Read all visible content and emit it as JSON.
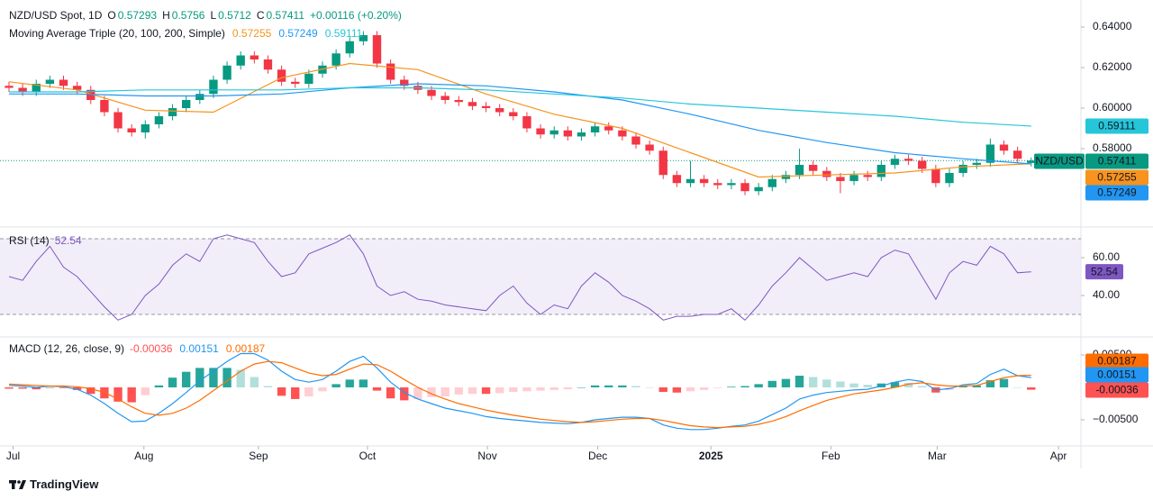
{
  "footer": "TradingView",
  "chart_data": [
    {
      "type": "candlestick",
      "title": "NZD/USD Spot, 1D",
      "ohlc_labels": [
        "O",
        "H",
        "L",
        "C"
      ],
      "change": "+0.00116 (+0.20%)",
      "indicator": "Moving Average Triple (20, 100, 200, Simple)",
      "symbol_tag": "NZD/USD",
      "up_color": "#089981",
      "down_color": "#f23645",
      "xlim": [
        -0.66,
        78.65
      ],
      "ylim": [
        0.5422,
        0.6498
      ],
      "yticks": [
        {
          "value": 0.64,
          "label": "0.64000"
        },
        {
          "value": 0.62,
          "label": "0.62000"
        },
        {
          "value": 0.6,
          "label": "0.60000"
        },
        {
          "value": 0.58,
          "label": "0.58000"
        }
      ],
      "open": [
        0.611,
        0.61,
        0.608,
        0.612,
        0.614,
        0.611,
        0.609,
        0.604,
        0.598,
        0.59,
        0.588,
        0.592,
        0.596,
        0.6,
        0.604,
        0.607,
        0.614,
        0.621,
        0.626,
        0.624,
        0.619,
        0.613,
        0.612,
        0.617,
        0.621,
        0.627,
        0.633,
        0.636,
        0.622,
        0.614,
        0.611,
        0.609,
        0.606,
        0.604,
        0.603,
        0.601,
        0.6,
        0.598,
        0.596,
        0.59,
        0.587,
        0.589,
        0.586,
        0.588,
        0.591,
        0.589,
        0.586,
        0.582,
        0.579,
        0.567,
        0.563,
        0.565,
        0.563,
        0.562,
        0.563,
        0.559,
        0.561,
        0.565,
        0.567,
        0.572,
        0.569,
        0.566,
        0.564,
        0.567,
        0.566,
        0.572,
        0.575,
        0.574,
        0.57,
        0.563,
        0.568,
        0.572,
        0.573,
        0.582,
        0.579,
        0.57293
      ],
      "high": [
        0.613,
        0.612,
        0.614,
        0.616,
        0.616,
        0.613,
        0.611,
        0.606,
        0.6,
        0.592,
        0.594,
        0.598,
        0.602,
        0.606,
        0.609,
        0.616,
        0.623,
        0.628,
        0.628,
        0.626,
        0.621,
        0.615,
        0.619,
        0.623,
        0.629,
        0.635,
        0.638,
        0.638,
        0.624,
        0.616,
        0.613,
        0.611,
        0.608,
        0.606,
        0.605,
        0.603,
        0.602,
        0.6,
        0.598,
        0.592,
        0.591,
        0.591,
        0.59,
        0.593,
        0.593,
        0.591,
        0.588,
        0.584,
        0.581,
        0.569,
        0.574,
        0.567,
        0.565,
        0.565,
        0.565,
        0.563,
        0.567,
        0.569,
        0.58,
        0.574,
        0.571,
        0.568,
        0.569,
        0.569,
        0.574,
        0.577,
        0.577,
        0.576,
        0.572,
        0.57,
        0.574,
        0.575,
        0.585,
        0.584,
        0.581,
        0.5756
      ],
      "low": [
        0.608,
        0.606,
        0.606,
        0.61,
        0.609,
        0.607,
        0.602,
        0.596,
        0.588,
        0.586,
        0.585,
        0.59,
        0.594,
        0.598,
        0.602,
        0.605,
        0.612,
        0.619,
        0.622,
        0.617,
        0.611,
        0.61,
        0.61,
        0.615,
        0.619,
        0.625,
        0.631,
        0.62,
        0.612,
        0.609,
        0.607,
        0.604,
        0.602,
        0.601,
        0.599,
        0.598,
        0.596,
        0.594,
        0.588,
        0.585,
        0.585,
        0.584,
        0.584,
        0.586,
        0.587,
        0.584,
        0.58,
        0.577,
        0.565,
        0.561,
        0.561,
        0.561,
        0.56,
        0.56,
        0.557,
        0.557,
        0.559,
        0.563,
        0.565,
        0.567,
        0.564,
        0.558,
        0.562,
        0.564,
        0.564,
        0.57,
        0.572,
        0.568,
        0.561,
        0.561,
        0.566,
        0.57,
        0.571,
        0.577,
        0.573,
        0.5712
      ],
      "close": [
        0.61,
        0.608,
        0.612,
        0.614,
        0.611,
        0.609,
        0.604,
        0.598,
        0.59,
        0.588,
        0.592,
        0.596,
        0.6,
        0.604,
        0.607,
        0.614,
        0.621,
        0.626,
        0.624,
        0.619,
        0.613,
        0.612,
        0.617,
        0.621,
        0.627,
        0.633,
        0.636,
        0.622,
        0.614,
        0.611,
        0.609,
        0.606,
        0.604,
        0.603,
        0.601,
        0.6,
        0.598,
        0.596,
        0.59,
        0.587,
        0.589,
        0.586,
        0.588,
        0.591,
        0.589,
        0.586,
        0.582,
        0.579,
        0.567,
        0.563,
        0.565,
        0.563,
        0.562,
        0.563,
        0.559,
        0.561,
        0.565,
        0.567,
        0.572,
        0.569,
        0.566,
        0.564,
        0.567,
        0.566,
        0.572,
        0.575,
        0.574,
        0.57,
        0.563,
        0.568,
        0.572,
        0.573,
        0.582,
        0.579,
        0.575,
        0.57411
      ],
      "moving_averages": [
        {
          "color": "#f7931e",
          "x": [
            0,
            5,
            10,
            15,
            20,
            25,
            30,
            35,
            40,
            45,
            50,
            55,
            60,
            65,
            70,
            75
          ],
          "values": [
            0.613,
            0.609,
            0.599,
            0.598,
            0.615,
            0.622,
            0.619,
            0.607,
            0.597,
            0.59,
            0.578,
            0.566,
            0.567,
            0.568,
            0.571,
            0.57255
          ]
        },
        {
          "color": "#2196f3",
          "x": [
            0,
            5,
            10,
            15,
            20,
            25,
            30,
            35,
            40,
            45,
            50,
            55,
            60,
            65,
            70,
            75
          ],
          "values": [
            0.607,
            0.607,
            0.606,
            0.606,
            0.607,
            0.61,
            0.612,
            0.611,
            0.608,
            0.604,
            0.597,
            0.589,
            0.583,
            0.578,
            0.575,
            0.57249
          ]
        },
        {
          "color": "#26c6da",
          "x": [
            0,
            5,
            10,
            15,
            20,
            25,
            30,
            35,
            40,
            45,
            50,
            55,
            60,
            65,
            70,
            75
          ],
          "values": [
            0.608,
            0.608,
            0.609,
            0.609,
            0.609,
            0.61,
            0.61,
            0.609,
            0.607,
            0.605,
            0.602,
            0.6,
            0.598,
            0.596,
            0.593,
            0.59111
          ]
        }
      ]
    },
    {
      "type": "line",
      "title": "RSI (14)",
      "color": "#7e57c2",
      "band": [
        30,
        70
      ],
      "band_color": "#ede7f6",
      "xlim": [
        -0.66,
        78.65
      ],
      "ylim": [
        19.05,
        74.76
      ],
      "yticks": [
        {
          "value": 60,
          "label": "60.00"
        },
        {
          "value": 40,
          "label": "40.00"
        }
      ],
      "values": [
        50,
        48,
        58,
        66,
        55,
        50,
        42,
        34,
        27,
        30,
        40,
        46,
        56,
        62,
        58,
        70,
        72,
        70,
        68,
        58,
        50,
        52,
        62,
        65,
        68,
        72,
        62,
        45,
        40,
        42,
        38,
        37,
        35,
        34,
        33,
        32,
        40,
        45,
        36,
        30,
        35,
        33,
        45,
        52,
        47,
        40,
        37,
        33,
        27,
        29,
        29,
        30,
        30,
        33,
        27,
        35,
        45,
        52,
        60,
        54,
        48,
        50,
        52,
        50,
        60,
        64,
        62,
        50,
        38,
        52,
        58,
        56,
        66,
        62,
        52,
        52.54
      ]
    },
    {
      "type": "macd",
      "title": "MACD (12, 26, close, 9)",
      "xlim": [
        -0.66,
        78.65
      ],
      "ylim": [
        -0.00903,
        0.00722
      ],
      "yticks": [
        {
          "value": 0.005,
          "label": "0.00500"
        },
        {
          "value": -0.005,
          "label": "−0.00500"
        }
      ],
      "xticks": [
        {
          "value": 0.3,
          "label": "Jul"
        },
        {
          "value": 9.9,
          "label": "Aug"
        },
        {
          "value": 18.3,
          "label": "Sep"
        },
        {
          "value": 26.3,
          "label": "Oct"
        },
        {
          "value": 35.1,
          "label": "Nov"
        },
        {
          "value": 43.2,
          "label": "Dec"
        },
        {
          "value": 51.5,
          "label": "2025"
        },
        {
          "value": 60.3,
          "label": "Feb"
        },
        {
          "value": 68.1,
          "label": "Mar"
        },
        {
          "value": 77.0,
          "label": "Apr"
        }
      ],
      "histogram_colors": [
        "#26a69a",
        "#b2dfdb",
        "#ff5252",
        "#ffcdd2"
      ],
      "histogram": [
        -0.0002,
        -0.0002,
        -0.0003,
        0,
        -0.0001,
        -0.0004,
        -0.001,
        -0.0017,
        -0.0022,
        -0.0023,
        -0.0012,
        0.0003,
        0.0015,
        0.0024,
        0.003,
        0.003,
        0.003,
        0.0027,
        0.0016,
        0.0002,
        -0.0013,
        -0.0018,
        -0.0014,
        -0.0006,
        0.0005,
        0.0012,
        0.0012,
        -0.0005,
        -0.0017,
        -0.002,
        -0.0018,
        -0.0015,
        -0.0014,
        -0.0011,
        -0.001,
        -0.001,
        -0.0009,
        -0.0007,
        -0.0006,
        -0.0005,
        -0.0004,
        -0.0003,
        0,
        0.0003,
        0.0003,
        0.0003,
        0.0002,
        0,
        -0.0007,
        -0.0008,
        -0.0006,
        -0.0004,
        -0.0001,
        0.0001,
        0.0002,
        0.0005,
        0.001,
        0.0013,
        0.0018,
        0.0016,
        0.0012,
        0.0009,
        0.0006,
        0.0004,
        0.0006,
        0.0008,
        0.0007,
        0.0002,
        -0.0008,
        -0.0004,
        0.0002,
        0.0003,
        0.0011,
        0.0013,
        0,
        -0.00036
      ],
      "series": [
        {
          "color": "#2196f3",
          "values": [
            0.0003,
            0.0002,
            0,
            0.0002,
            0.0001,
            -0.0003,
            -0.0012,
            -0.0025,
            -0.004,
            -0.0053,
            -0.0052,
            -0.004,
            -0.0025,
            -0.0008,
            0.001,
            0.0025,
            0.004,
            0.0052,
            0.0052,
            0.0042,
            0.0025,
            0.0012,
            0.0008,
            0.0012,
            0.0025,
            0.004,
            0.0048,
            0.003,
            0.0008,
            -0.0008,
            -0.0018,
            -0.0025,
            -0.0032,
            -0.0036,
            -0.004,
            -0.0045,
            -0.0048,
            -0.005,
            -0.0052,
            -0.0054,
            -0.0055,
            -0.0056,
            -0.0054,
            -0.005,
            -0.0048,
            -0.0046,
            -0.0046,
            -0.0048,
            -0.0058,
            -0.0063,
            -0.0065,
            -0.0065,
            -0.0063,
            -0.006,
            -0.0058,
            -0.0052,
            -0.0042,
            -0.0032,
            -0.0018,
            -0.0012,
            -0.0008,
            -0.0006,
            -0.0004,
            -0.0003,
            0.0002,
            0.0008,
            0.0012,
            0.0009,
            -0.0004,
            -0.0002,
            0.0004,
            0.0006,
            0.002,
            0.0028,
            0.0018,
            0.00151
          ]
        },
        {
          "color": "#ff6d00",
          "values": [
            0.0005,
            0.0004,
            0.0003,
            0.0002,
            0.0002,
            0.0001,
            -0.0002,
            -0.0008,
            -0.0018,
            -0.003,
            -0.004,
            -0.0043,
            -0.004,
            -0.0032,
            -0.002,
            -0.0005,
            0.001,
            0.0025,
            0.0036,
            0.004,
            0.0038,
            0.003,
            0.0022,
            0.0018,
            0.002,
            0.0028,
            0.0036,
            0.0035,
            0.0025,
            0.0012,
            0,
            -0.001,
            -0.0018,
            -0.0025,
            -0.003,
            -0.0035,
            -0.0039,
            -0.0043,
            -0.0046,
            -0.0049,
            -0.0051,
            -0.0053,
            -0.0054,
            -0.0053,
            -0.0051,
            -0.0049,
            -0.0048,
            -0.0048,
            -0.0051,
            -0.0055,
            -0.0059,
            -0.0061,
            -0.0062,
            -0.0061,
            -0.006,
            -0.0057,
            -0.0052,
            -0.0045,
            -0.0036,
            -0.0028,
            -0.002,
            -0.0015,
            -0.001,
            -0.0007,
            -0.0004,
            0,
            0.0005,
            0.0007,
            0.0004,
            0.0002,
            0.0002,
            0.0003,
            0.0009,
            0.0015,
            0.0018,
            0.00187
          ]
        }
      ]
    }
  ]
}
